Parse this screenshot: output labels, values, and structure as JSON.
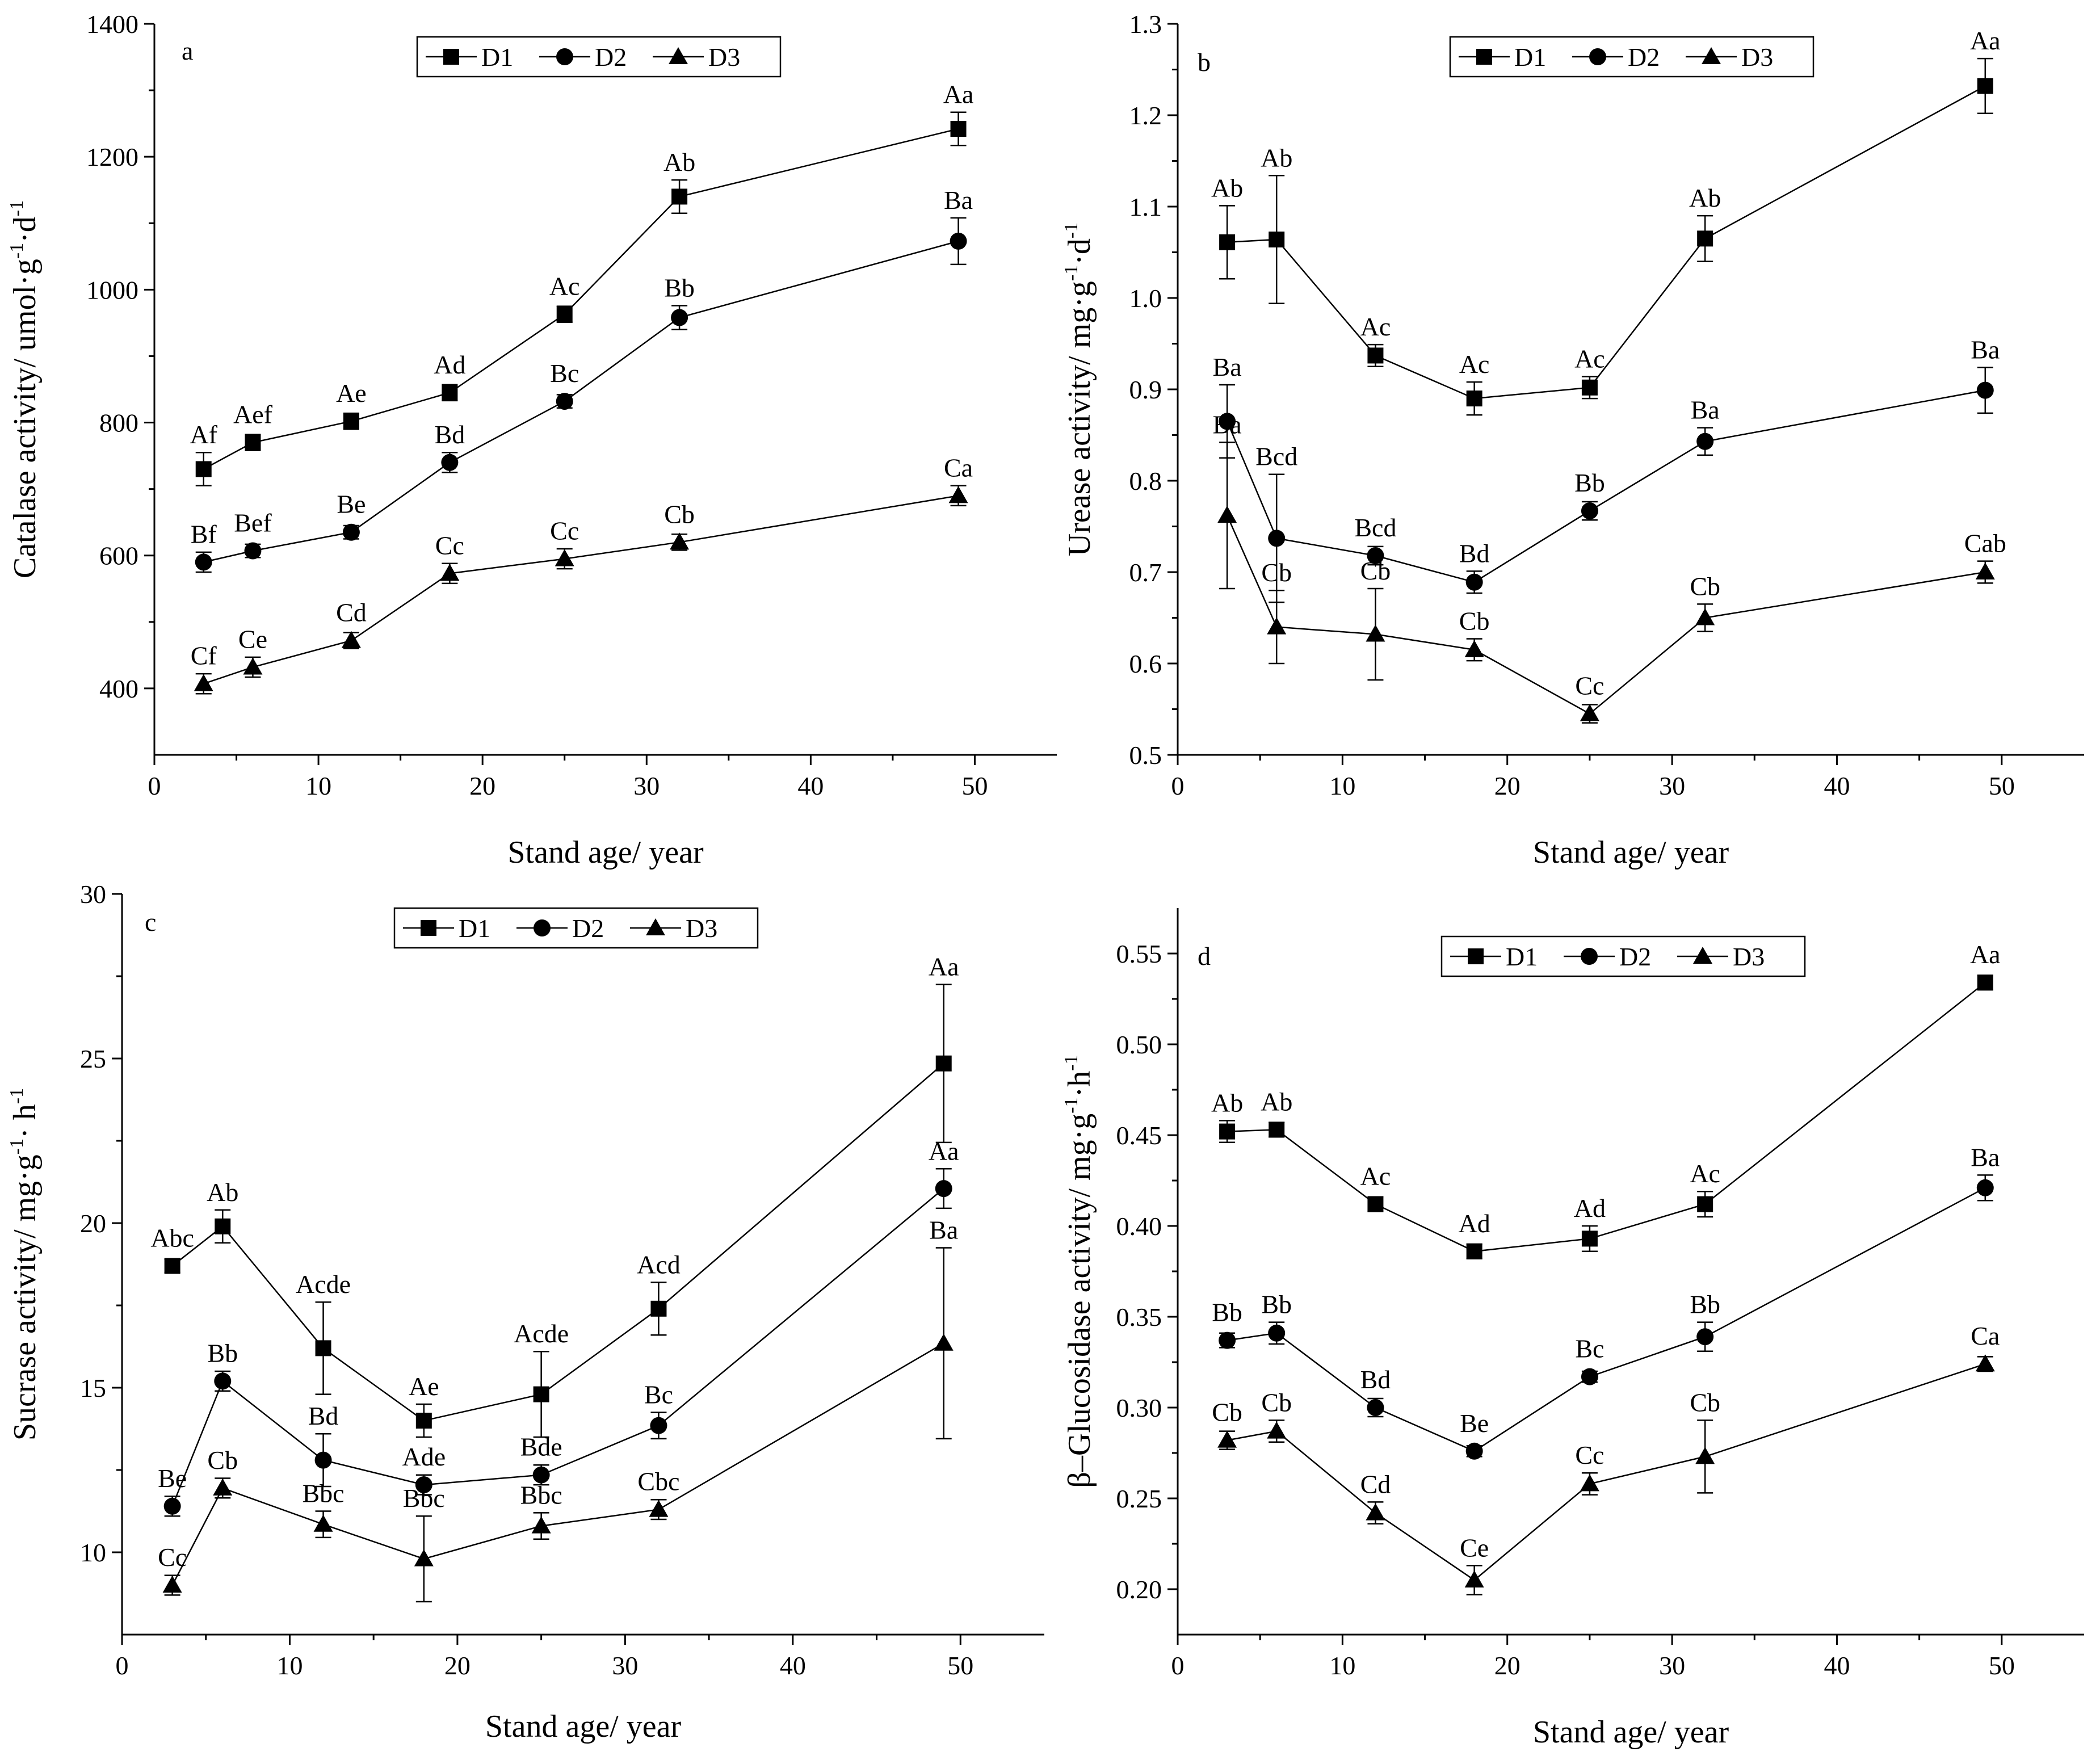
{
  "chart_data": [
    {
      "type": "line",
      "panel_label": "a",
      "xlabel": "Stand age/ year",
      "ylabel": "Catalase activity/ umol·g·d",
      "ylabel_sup": "-1",
      "xlim": [
        0,
        55
      ],
      "ylim": [
        300,
        1400
      ],
      "xticks": [
        0,
        10,
        20,
        30,
        40,
        50
      ],
      "yticks": [
        400,
        600,
        800,
        1000,
        1200,
        1400
      ],
      "ytick_labels": [
        "400",
        "600",
        "800",
        "1000",
        "1200",
        "1400"
      ],
      "legend": [
        "D1",
        "D2",
        "D3"
      ],
      "x": [
        3,
        6,
        12,
        18,
        25,
        32,
        49
      ],
      "series": [
        {
          "name": "D1",
          "marker": "square",
          "values": [
            730,
            770,
            802,
            845,
            963,
            1140,
            1242
          ],
          "errors": [
            25,
            12,
            12,
            12,
            12,
            25,
            25
          ],
          "labels": [
            "Af",
            "Aef",
            "Ae",
            "Ad",
            "Ac",
            "Ab",
            "Aa"
          ]
        },
        {
          "name": "D2",
          "marker": "circle",
          "values": [
            590,
            607,
            635,
            740,
            832,
            958,
            1073
          ],
          "errors": [
            15,
            10,
            10,
            15,
            10,
            18,
            35
          ],
          "labels": [
            "Bf",
            "Bef",
            "Be",
            "Bd",
            "Bc",
            "Bb",
            "Ba"
          ]
        },
        {
          "name": "D3",
          "marker": "triangle",
          "values": [
            407,
            432,
            472,
            573,
            595,
            620,
            690
          ],
          "errors": [
            15,
            15,
            12,
            15,
            15,
            12,
            15
          ],
          "labels": [
            "Cf",
            "Ce",
            "Cd",
            "Cc",
            "Cc",
            "Cb",
            "Ca"
          ]
        }
      ]
    },
    {
      "type": "line",
      "panel_label": "b",
      "xlabel": "Stand age/ year",
      "ylabel": "Urease activity/ mg·g·d",
      "ylabel_sup": "-1",
      "xlim": [
        0,
        55
      ],
      "ylim": [
        0.5,
        1.3
      ],
      "xticks": [
        0,
        10,
        20,
        30,
        40,
        50
      ],
      "yticks": [
        0.5,
        0.6,
        0.7,
        0.8,
        0.9,
        1.0,
        1.1,
        1.2,
        1.3
      ],
      "ytick_labels": [
        "0.5",
        "0.6",
        "0.7",
        "0.8",
        "0.9",
        "1.0",
        "1.1",
        "1.2",
        "1.3"
      ],
      "legend": [
        "D1",
        "D2",
        "D3"
      ],
      "x": [
        3,
        6,
        12,
        18,
        25,
        32,
        49
      ],
      "series": [
        {
          "name": "D1",
          "marker": "square",
          "values": [
            1.061,
            1.064,
            0.937,
            0.89,
            0.902,
            1.065,
            1.232
          ],
          "errors": [
            0.04,
            0.07,
            0.012,
            0.018,
            0.012,
            0.025,
            0.03
          ],
          "labels": [
            "Ab",
            "Ab",
            "Ac",
            "Ac",
            "Ac",
            "Ab",
            "Aa"
          ]
        },
        {
          "name": "D2",
          "marker": "circle",
          "values": [
            0.865,
            0.737,
            0.718,
            0.689,
            0.767,
            0.843,
            0.899
          ],
          "errors": [
            0.04,
            0.07,
            0.01,
            0.012,
            0.01,
            0.015,
            0.025
          ],
          "labels": [
            "Ba",
            "Bcd",
            "Bcd",
            "Bd",
            "Bb",
            "Ba",
            "Ba"
          ]
        },
        {
          "name": "D3",
          "marker": "triangle",
          "values": [
            0.762,
            0.64,
            0.632,
            0.615,
            0.545,
            0.65,
            0.7
          ],
          "errors": [
            0.08,
            0.04,
            0.05,
            0.012,
            0.01,
            0.015,
            0.012
          ],
          "labels": [
            "Ba",
            "Cb",
            "Cb",
            "Cb",
            "Cc",
            "Cb",
            "Cab"
          ]
        }
      ]
    },
    {
      "type": "line",
      "panel_label": "c",
      "xlabel": "Stand age/ year",
      "ylabel": "Sucrase activity/ mg·g· h",
      "ylabel_sup": "-1",
      "xlim": [
        0,
        55
      ],
      "ylim": [
        7.5,
        30
      ],
      "xticks": [
        0,
        10,
        20,
        30,
        40,
        50
      ],
      "yticks": [
        10,
        15,
        20,
        25,
        30
      ],
      "ytick_labels": [
        "10",
        "15",
        "20",
        "25",
        "30"
      ],
      "legend": [
        "D1",
        "D2",
        "D3"
      ],
      "x": [
        3,
        6,
        12,
        18,
        25,
        32,
        49
      ],
      "series": [
        {
          "name": "D1",
          "marker": "square",
          "values": [
            18.7,
            19.9,
            16.2,
            14.0,
            14.8,
            17.4,
            24.85
          ],
          "errors": [
            0.2,
            0.5,
            1.4,
            0.5,
            1.3,
            0.8,
            2.4
          ],
          "labels": [
            "Abc",
            "Ab",
            "Acde",
            "Ae",
            "Acde",
            "Acd",
            "Aa"
          ]
        },
        {
          "name": "D2",
          "marker": "circle",
          "values": [
            11.4,
            15.2,
            12.8,
            12.05,
            12.35,
            13.85,
            21.05
          ],
          "errors": [
            0.3,
            0.3,
            0.8,
            0.3,
            0.3,
            0.4,
            0.6
          ],
          "labels": [
            "Be",
            "Bb",
            "Bd",
            "Ade",
            "Bde",
            "Bc",
            "Aa"
          ]
        },
        {
          "name": "D3",
          "marker": "triangle",
          "values": [
            9.0,
            11.95,
            10.85,
            9.8,
            10.8,
            11.3,
            16.35
          ],
          "errors": [
            0.3,
            0.3,
            0.4,
            1.3,
            0.4,
            0.3,
            2.9
          ],
          "labels": [
            "Cc",
            "Cb",
            "Bbc",
            "Bbc",
            "Bbc",
            "Cbc",
            "Ba"
          ]
        }
      ]
    },
    {
      "type": "line",
      "panel_label": "d",
      "xlabel": "Stand age/ year",
      "ylabel": "β–Glucosidase activity/ mg·g·h",
      "ylabel_sup": "-1",
      "xlim": [
        0,
        55
      ],
      "ylim": [
        0.175,
        0.575
      ],
      "xticks": [
        0,
        10,
        20,
        30,
        40,
        50
      ],
      "yticks": [
        0.2,
        0.25,
        0.3,
        0.35,
        0.4,
        0.45,
        0.5,
        0.55
      ],
      "ytick_labels": [
        "0.20",
        "0.25",
        "0.30",
        "0.35",
        "0.40",
        "0.45",
        "0.50",
        "0.55"
      ],
      "legend": [
        "D1",
        "D2",
        "D3"
      ],
      "x": [
        3,
        6,
        12,
        18,
        25,
        32,
        49
      ],
      "series": [
        {
          "name": "D1",
          "marker": "square",
          "values": [
            0.452,
            0.453,
            0.412,
            0.386,
            0.393,
            0.412,
            0.534
          ],
          "errors": [
            0.006,
            0.004,
            0.004,
            0.004,
            0.007,
            0.007,
            0.004
          ],
          "labels": [
            "Ab",
            "Ab",
            "Ac",
            "Ad",
            "Ad",
            "Ac",
            "Aa"
          ]
        },
        {
          "name": "D2",
          "marker": "circle",
          "values": [
            0.337,
            0.341,
            0.3,
            0.276,
            0.317,
            0.339,
            0.421
          ],
          "errors": [
            0.004,
            0.006,
            0.005,
            0.003,
            0.003,
            0.008,
            0.007
          ],
          "labels": [
            "Bb",
            "Bb",
            "Bd",
            "Be",
            "Bc",
            "Bb",
            "Ba"
          ]
        },
        {
          "name": "D3",
          "marker": "triangle",
          "values": [
            0.282,
            0.287,
            0.242,
            0.205,
            0.258,
            0.273,
            0.324
          ],
          "errors": [
            0.005,
            0.006,
            0.006,
            0.008,
            0.006,
            0.02,
            0.004
          ],
          "labels": [
            "Cb",
            "Cb",
            "Cd",
            "Ce",
            "Cc",
            "Cb",
            "Ca"
          ]
        }
      ]
    }
  ]
}
